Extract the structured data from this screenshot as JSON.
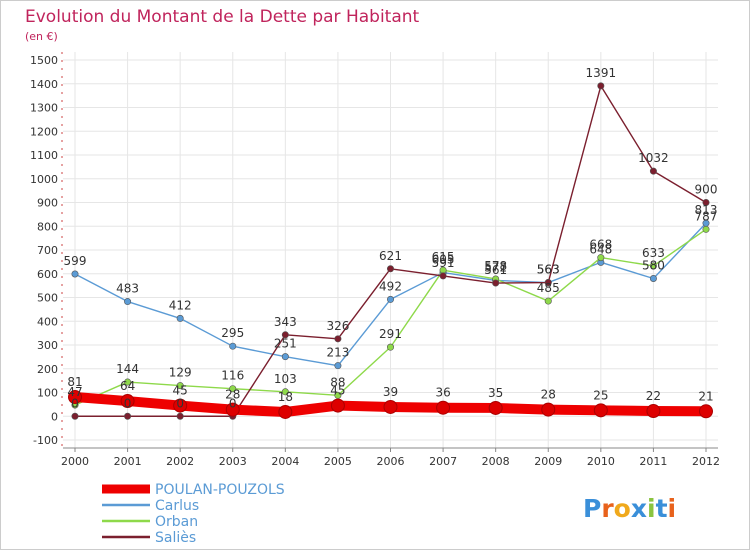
{
  "chart_data": {
    "type": "line",
    "title": "Evolution du Montant de la Dette par Habitant",
    "subtitle": "(en €)",
    "xlabel": "",
    "ylabel": "",
    "x": [
      "2000",
      "2001",
      "2002",
      "2003",
      "2004",
      "2005",
      "2006",
      "2007",
      "2008",
      "2009",
      "2010",
      "2011",
      "2012"
    ],
    "y_ticks": [
      "-100",
      "0",
      "100",
      "200",
      "300",
      "400",
      "500",
      "600",
      "700",
      "800",
      "900",
      "1000",
      "1100",
      "1200",
      "1300",
      "1400",
      "1500"
    ],
    "ylim": [
      -100,
      1500
    ],
    "grid": true,
    "legend_position": "bottom-left",
    "series": [
      {
        "name": "POULAN-POUZOLS",
        "color": "#ee0000",
        "values": [
          81,
          64,
          45,
          28,
          18,
          45,
          39,
          36,
          35,
          28,
          25,
          22,
          21
        ],
        "labels": [
          "81",
          "64",
          "45",
          "28",
          "18",
          "45",
          "39",
          "36",
          "35",
          "28",
          "25",
          "22",
          "21"
        ]
      },
      {
        "name": "Carlus",
        "color": "#5b9bd5",
        "values": [
          599,
          483,
          412,
          295,
          251,
          213,
          492,
          605,
          572,
          563,
          648,
          580,
          813
        ],
        "labels": [
          "599",
          "483",
          "412",
          "295",
          "251",
          "213",
          "492",
          "605",
          "572",
          "563",
          "648",
          "580",
          "813"
        ]
      },
      {
        "name": "Orban",
        "color": "#8ed94a",
        "values": [
          47,
          144,
          129,
          116,
          103,
          88,
          291,
          615,
          578,
          485,
          668,
          633,
          787
        ],
        "labels": [
          "47",
          "144",
          "129",
          "116",
          "103",
          "88",
          "291",
          "615",
          "578",
          "485",
          "668",
          "633",
          "787"
        ]
      },
      {
        "name": "Saliès",
        "color": "#7b1f2e",
        "values": [
          0,
          0,
          0,
          0,
          343,
          326,
          621,
          591,
          561,
          563,
          1391,
          1032,
          900
        ],
        "labels": [
          "0",
          "0",
          "0",
          "0",
          "343",
          "326",
          "621",
          "591",
          "561",
          "563",
          "1391",
          "1032",
          "900"
        ]
      }
    ]
  },
  "logo": {
    "text": "Proxiti"
  }
}
